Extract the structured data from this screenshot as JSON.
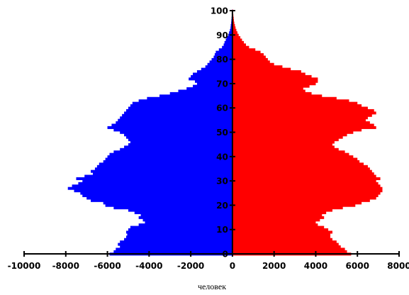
{
  "chart_data": {
    "type": "bar",
    "orientation": "horizontal",
    "variant": "population-pyramid",
    "title": "",
    "xlabel": "человек",
    "ylabel": "",
    "xlim": [
      -10000,
      8000
    ],
    "ylim": [
      0,
      100
    ],
    "x_ticks": [
      -10000,
      -8000,
      -6000,
      -4000,
      -2000,
      0,
      2000,
      4000,
      6000,
      8000
    ],
    "x_tick_labels": [
      "-10000",
      "-8000",
      "-6000",
      "-4000",
      "-2000",
      "0",
      "2000",
      "4000",
      "6000",
      "8000"
    ],
    "y_ticks": [
      0,
      10,
      20,
      30,
      40,
      50,
      60,
      70,
      80,
      90,
      100
    ],
    "y_tick_labels": [
      "0",
      "10",
      "20",
      "30",
      "40",
      "50",
      "60",
      "70",
      "80",
      "90",
      "100"
    ],
    "legend": "none",
    "grid": false,
    "ages": [
      0,
      1,
      2,
      3,
      4,
      5,
      6,
      7,
      8,
      9,
      10,
      11,
      12,
      13,
      14,
      15,
      16,
      17,
      18,
      19,
      20,
      21,
      22,
      23,
      24,
      25,
      26,
      27,
      28,
      29,
      30,
      31,
      32,
      33,
      34,
      35,
      36,
      37,
      38,
      39,
      40,
      41,
      42,
      43,
      44,
      45,
      46,
      47,
      48,
      49,
      50,
      51,
      52,
      53,
      54,
      55,
      56,
      57,
      58,
      59,
      60,
      61,
      62,
      63,
      64,
      65,
      66,
      67,
      68,
      69,
      70,
      71,
      72,
      73,
      74,
      75,
      76,
      77,
      78,
      79,
      80,
      81,
      82,
      83,
      84,
      85,
      86,
      87,
      88,
      89,
      90,
      91,
      92,
      93,
      94,
      95,
      96,
      97,
      98,
      99,
      100
    ],
    "series": [
      {
        "color": "#0000ff",
        "values": [
          5900,
          5700,
          5600,
          5400,
          5500,
          5400,
          5200,
          5100,
          5050,
          5100,
          5000,
          4900,
          4500,
          4200,
          4300,
          4500,
          4400,
          4700,
          5000,
          5700,
          6100,
          6200,
          6800,
          7000,
          7200,
          7300,
          7600,
          7900,
          7700,
          7400,
          7200,
          7500,
          7100,
          6700,
          6800,
          6600,
          6500,
          6400,
          6200,
          6100,
          6000,
          5900,
          5700,
          5400,
          5200,
          5000,
          4900,
          5000,
          5100,
          5200,
          5400,
          5700,
          6000,
          5800,
          5600,
          5500,
          5400,
          5300,
          5200,
          5100,
          5000,
          4900,
          4800,
          4500,
          4100,
          3500,
          3000,
          2600,
          2200,
          1900,
          1700,
          1800,
          2100,
          2000,
          1900,
          1700,
          1500,
          1300,
          1200,
          1100,
          1000,
          900,
          850,
          800,
          650,
          500,
          420,
          380,
          320,
          280,
          200,
          160,
          120,
          90,
          80,
          60,
          50,
          40,
          30,
          20,
          15
        ]
      },
      {
        "color": "#ff0000",
        "values": [
          5700,
          5500,
          5400,
          5200,
          5100,
          5000,
          4800,
          4700,
          4700,
          4800,
          4600,
          4400,
          4100,
          4000,
          4200,
          4400,
          4300,
          4500,
          4800,
          5300,
          5900,
          6200,
          6600,
          6900,
          7000,
          7100,
          7200,
          7200,
          7100,
          7000,
          6900,
          7100,
          6900,
          6800,
          6700,
          6600,
          6500,
          6300,
          6100,
          6000,
          5800,
          5600,
          5400,
          5100,
          4900,
          4800,
          4900,
          5100,
          5300,
          5500,
          5800,
          6200,
          6900,
          6800,
          6600,
          6400,
          6500,
          6700,
          6900,
          6800,
          6500,
          6200,
          6000,
          5600,
          5000,
          4300,
          3800,
          3500,
          3400,
          3700,
          4000,
          4100,
          4100,
          3800,
          3500,
          3300,
          2800,
          2400,
          2000,
          1800,
          1700,
          1600,
          1500,
          1350,
          1100,
          800,
          650,
          550,
          460,
          380,
          300,
          240,
          190,
          150,
          120,
          90,
          70,
          60,
          45,
          35,
          25
        ]
      }
    ]
  }
}
